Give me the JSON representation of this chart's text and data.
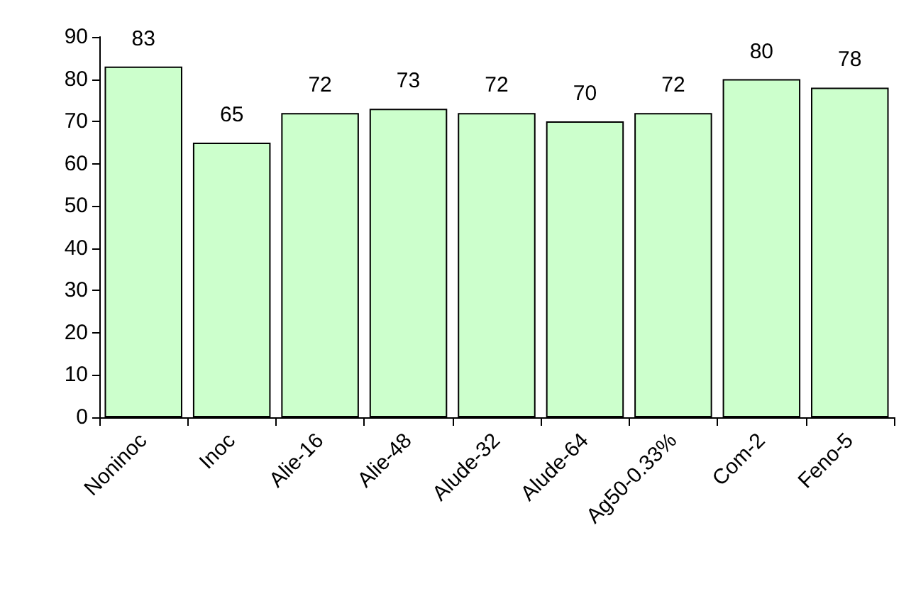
{
  "chart_data": {
    "type": "bar",
    "categories": [
      "Noninoc",
      "Inoc",
      "Alie-16",
      "Alie-48",
      "Alude-32",
      "Alude-64",
      "Ag50-0.33%",
      "Com-2",
      "Feno-5"
    ],
    "values": [
      83,
      65,
      72,
      73,
      72,
      70,
      72,
      80,
      78
    ],
    "color": "#ccffcc",
    "ylim": [
      0,
      90
    ],
    "yticks": [
      0,
      10,
      20,
      30,
      40,
      50,
      60,
      70,
      80,
      90
    ],
    "grid": false,
    "data_labels": true
  }
}
